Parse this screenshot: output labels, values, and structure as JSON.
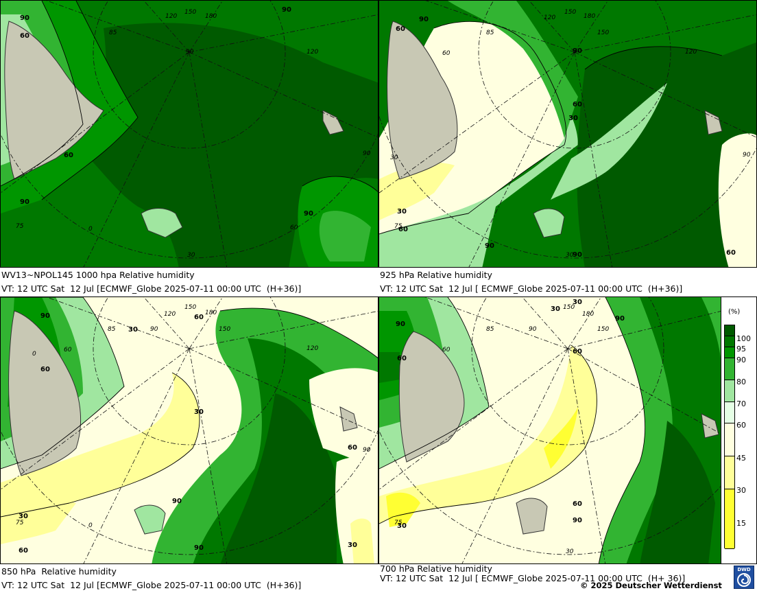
{
  "panels": [
    {
      "id": "p1000",
      "title": "WV13~NPOL145 1000 hpa Relative humidity",
      "valid_time": "VT: 12 UTC Sat  12 Jul [ECMWF_Globe 2025-07-11 00:00 UTC  (H+36)]",
      "contour_labels": [
        "90",
        "60",
        "60",
        "90",
        "90",
        "60",
        "90",
        "90"
      ],
      "grid_labels": [
        "150",
        "120",
        "180",
        "85",
        "90",
        "120",
        "90",
        "0",
        "30",
        "30",
        "75",
        "60",
        "90"
      ]
    },
    {
      "id": "p925",
      "title": "925 hPa Relative humidity",
      "valid_time": "VT: 12 UTC Sat  12 Jul [ ECMWF_Globe 2025-07-11 00:00 UTC  (H+36)]",
      "contour_labels": [
        "60",
        "90",
        "90",
        "60",
        "30",
        "30",
        "60",
        "90",
        "90",
        "90",
        "60"
      ],
      "grid_labels": [
        "150",
        "180",
        "120",
        "150",
        "85",
        "120",
        "60",
        "90",
        "30",
        "75",
        "30"
      ]
    },
    {
      "id": "p850",
      "title": "850 hPa  Relative humidity",
      "valid_time": "VT: 12 UTC Sat  12 Jul [ECMWF_Globe 2025-07-11 00:00 UTC  (H+36)]",
      "contour_labels": [
        "90",
        "30",
        "60",
        "60",
        "30",
        "60",
        "90",
        "30",
        "60",
        "90",
        "30"
      ],
      "grid_labels": [
        "150",
        "120",
        "180",
        "150",
        "85",
        "90",
        "120",
        "60",
        "0",
        "90",
        "75",
        "0",
        "30"
      ]
    },
    {
      "id": "p700",
      "title": "700 hPa Relative humidity",
      "valid_time": "VT: 12 UTC Sat  12 Jul [ ECMWF_Globe 2025-07-11 00:00 UTC  (H+ 36)]",
      "contour_labels": [
        "30",
        "30",
        "90",
        "60",
        "60",
        "60",
        "90",
        "60",
        "90",
        "30"
      ],
      "grid_labels": [
        "150",
        "120",
        "180",
        "150",
        "85",
        "90",
        "60",
        "75",
        "30"
      ]
    }
  ],
  "legend": {
    "unit": "(%)",
    "ticks": [
      "100",
      "95",
      "90",
      "80",
      "70",
      "60",
      "45",
      "30",
      "15"
    ],
    "colors": {
      "c100": "#005a00",
      "c95": "#007800",
      "c90": "#009600",
      "c80": "#32b432",
      "c70": "#a0e6a0",
      "c60": "#e6ffe6",
      "c45": "#ffffe0",
      "c30": "#ffff99",
      "c15": "#ffff33"
    }
  },
  "land_color": "#c8c8b4",
  "copyright": "© 2025 Deutscher Wetterdienst",
  "logo_text": "DWD"
}
